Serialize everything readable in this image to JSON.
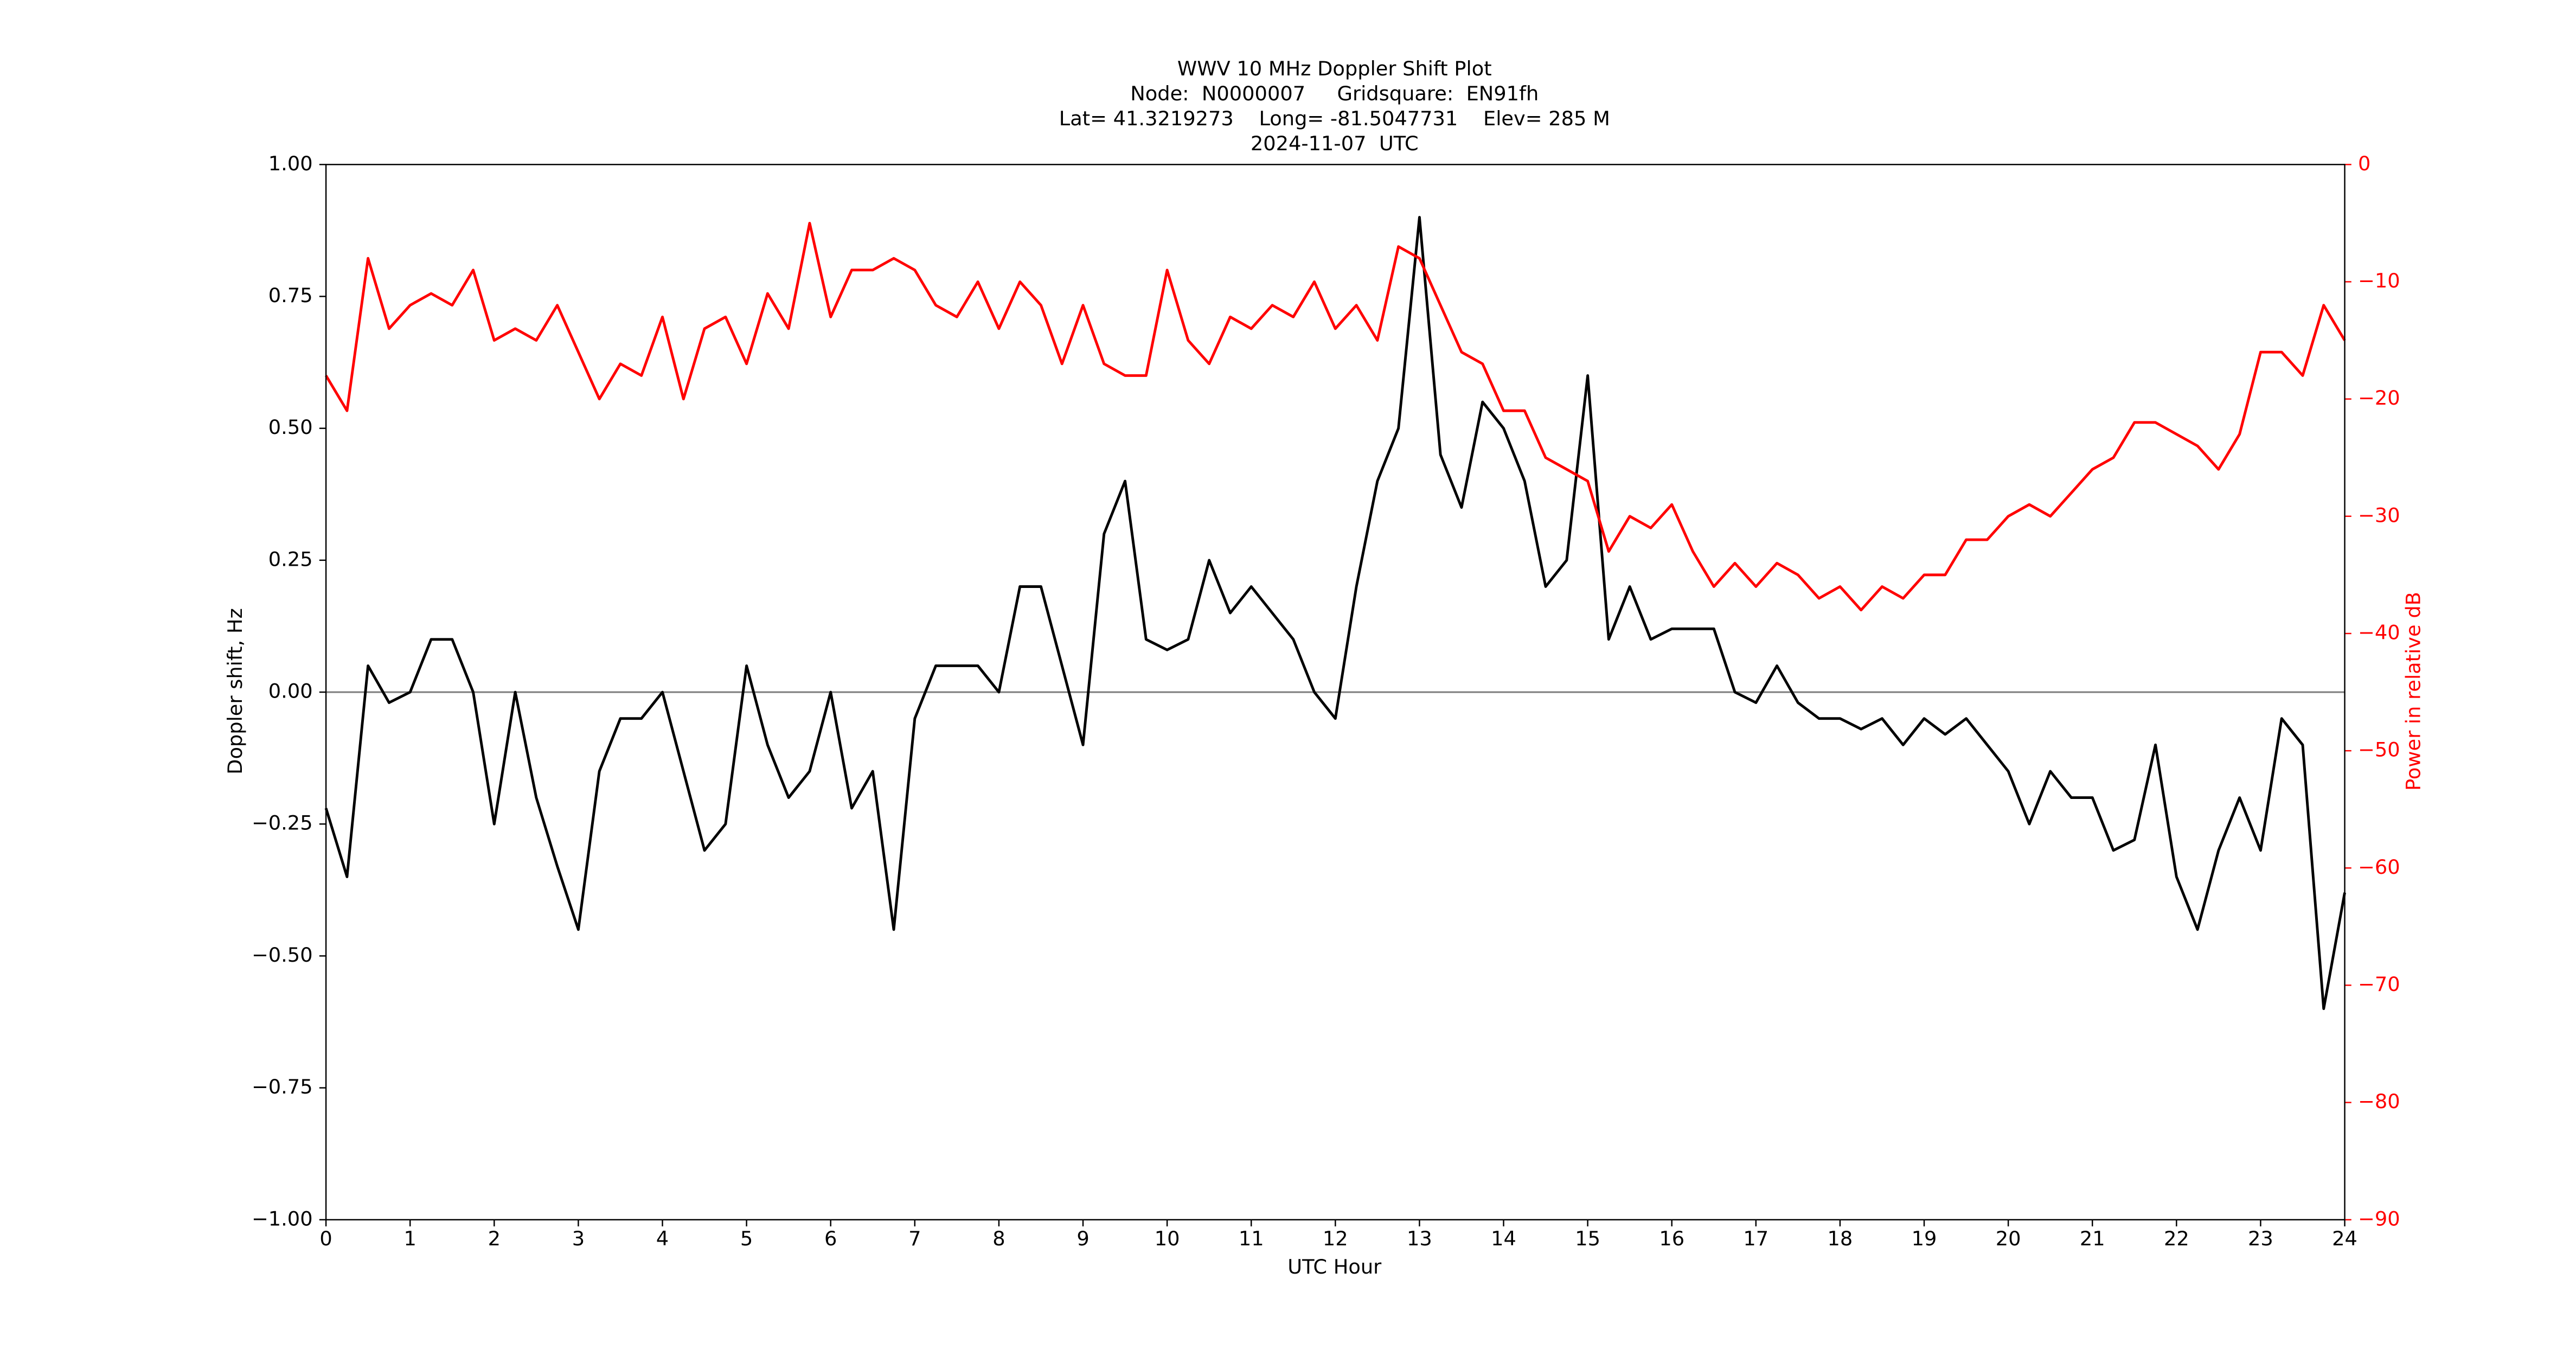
{
  "chart_data": {
    "type": "line",
    "title": "WWV 10 MHz Doppler Shift Plot",
    "subtitle": [
      "Node:  N0000007     Gridsquare:  EN91fh",
      "Lat= 41.3219273    Long= -81.5047731    Elev= 285 M",
      "2024-11-07  UTC"
    ],
    "xlabel": "UTC Hour",
    "ylabel": "Doppler shift, Hz",
    "y2label": "Power in relative dB",
    "x": [
      0,
      0.25,
      0.5,
      0.75,
      1,
      1.25,
      1.5,
      1.75,
      2,
      2.25,
      2.5,
      2.75,
      3,
      3.25,
      3.5,
      3.75,
      4,
      4.25,
      4.5,
      4.75,
      5,
      5.25,
      5.5,
      5.75,
      6,
      6.25,
      6.5,
      6.75,
      7,
      7.25,
      7.5,
      7.75,
      8,
      8.25,
      8.5,
      8.75,
      9,
      9.25,
      9.5,
      9.75,
      10,
      10.25,
      10.5,
      10.75,
      11,
      11.25,
      11.5,
      11.75,
      12,
      12.25,
      12.5,
      12.75,
      13,
      13.25,
      13.5,
      13.75,
      14,
      14.25,
      14.5,
      14.75,
      15,
      15.25,
      15.5,
      15.75,
      16,
      16.25,
      16.5,
      16.75,
      17,
      17.25,
      17.5,
      17.75,
      18,
      18.25,
      18.5,
      18.75,
      19,
      19.25,
      19.5,
      19.75,
      20,
      20.25,
      20.5,
      20.75,
      21,
      21.25,
      21.5,
      21.75,
      22,
      22.25,
      22.5,
      22.75,
      23,
      23.25,
      23.5,
      23.75,
      24
    ],
    "series": [
      {
        "color": "#000000",
        "axis": "y",
        "values": [
          -0.22,
          -0.35,
          0.05,
          -0.02,
          0,
          0.1,
          0.1,
          0,
          -0.25,
          0,
          -0.2,
          -0.33,
          -0.45,
          -0.15,
          -0.05,
          -0.05,
          0,
          -0.15,
          -0.3,
          -0.25,
          0.05,
          -0.1,
          -0.2,
          -0.15,
          0,
          -0.22,
          -0.15,
          -0.45,
          -0.05,
          0.05,
          0.05,
          0.05,
          0,
          0.2,
          0.2,
          0.05,
          -0.1,
          0.3,
          0.4,
          0.1,
          0.08,
          0.1,
          0.25,
          0.15,
          0.2,
          0.15,
          0.1,
          0,
          -0.05,
          0.2,
          0.4,
          0.5,
          0.9,
          0.45,
          0.35,
          0.55,
          0.5,
          0.4,
          0.2,
          0.25,
          0.6,
          0.1,
          0.2,
          0.1,
          0.12,
          0.12,
          0.12,
          0,
          -0.02,
          0.05,
          -0.02,
          -0.05,
          -0.05,
          -0.07,
          -0.05,
          -0.1,
          -0.05,
          -0.08,
          -0.05,
          -0.1,
          -0.15,
          -0.25,
          -0.15,
          -0.2,
          -0.2,
          -0.3,
          -0.28,
          -0.1,
          -0.35,
          -0.45,
          -0.3,
          -0.2,
          -0.3,
          -0.05,
          -0.1,
          -0.6,
          -0.38
        ]
      },
      {
        "color": "#ff0000",
        "axis": "y2",
        "values": [
          -18,
          -21,
          -8,
          -14,
          -12,
          -11,
          -12,
          -9,
          -15,
          -14,
          -15,
          -12,
          -16,
          -20,
          -17,
          -18,
          -13,
          -20,
          -14,
          -13,
          -17,
          -11,
          -14,
          -5,
          -13,
          -9,
          -9,
          -8,
          -9,
          -12,
          -13,
          -10,
          -14,
          -10,
          -12,
          -17,
          -12,
          -17,
          -18,
          -18,
          -9,
          -15,
          -17,
          -13,
          -14,
          -12,
          -13,
          -10,
          -14,
          -12,
          -15,
          -7,
          -8,
          -12,
          -16,
          -17,
          -21,
          -21,
          -25,
          -26,
          -27,
          -33,
          -30,
          -31,
          -29,
          -33,
          -36,
          -34,
          -36,
          -34,
          -35,
          -37,
          -36,
          -38,
          -36,
          -37,
          -35,
          -35,
          -32,
          -32,
          -30,
          -29,
          -30,
          -28,
          -26,
          -25,
          -22,
          -22,
          -23,
          -24,
          -26,
          -23,
          -16,
          -16,
          -18,
          -12,
          -15
        ]
      }
    ],
    "xlim": [
      0,
      24
    ],
    "xticks": [
      0,
      1,
      2,
      3,
      4,
      5,
      6,
      7,
      8,
      9,
      10,
      11,
      12,
      13,
      14,
      15,
      16,
      17,
      18,
      19,
      20,
      21,
      22,
      23,
      24
    ],
    "ylim": [
      -1,
      1
    ],
    "yticks": [
      {
        "value": -1,
        "label": "−1.00"
      },
      {
        "value": -0.75,
        "label": "−0.75"
      },
      {
        "value": -0.5,
        "label": "−0.50"
      },
      {
        "value": -0.25,
        "label": "−0.25"
      },
      {
        "value": 0,
        "label": "0.00"
      },
      {
        "value": 0.25,
        "label": "0.25"
      },
      {
        "value": 0.5,
        "label": "0.50"
      },
      {
        "value": 0.75,
        "label": "0.75"
      },
      {
        "value": 1,
        "label": "1.00"
      }
    ],
    "y2lim": [
      -90,
      0
    ],
    "y2ticks": [
      {
        "value": -90,
        "label": "−90"
      },
      {
        "value": -80,
        "label": "−80"
      },
      {
        "value": -70,
        "label": "−70"
      },
      {
        "value": -60,
        "label": "−60"
      },
      {
        "value": -50,
        "label": "−50"
      },
      {
        "value": -40,
        "label": "−40"
      },
      {
        "value": -30,
        "label": "−30"
      },
      {
        "value": -20,
        "label": "−20"
      },
      {
        "value": -10,
        "label": "−10"
      },
      0
    ],
    "y2color": "#ff0000"
  }
}
